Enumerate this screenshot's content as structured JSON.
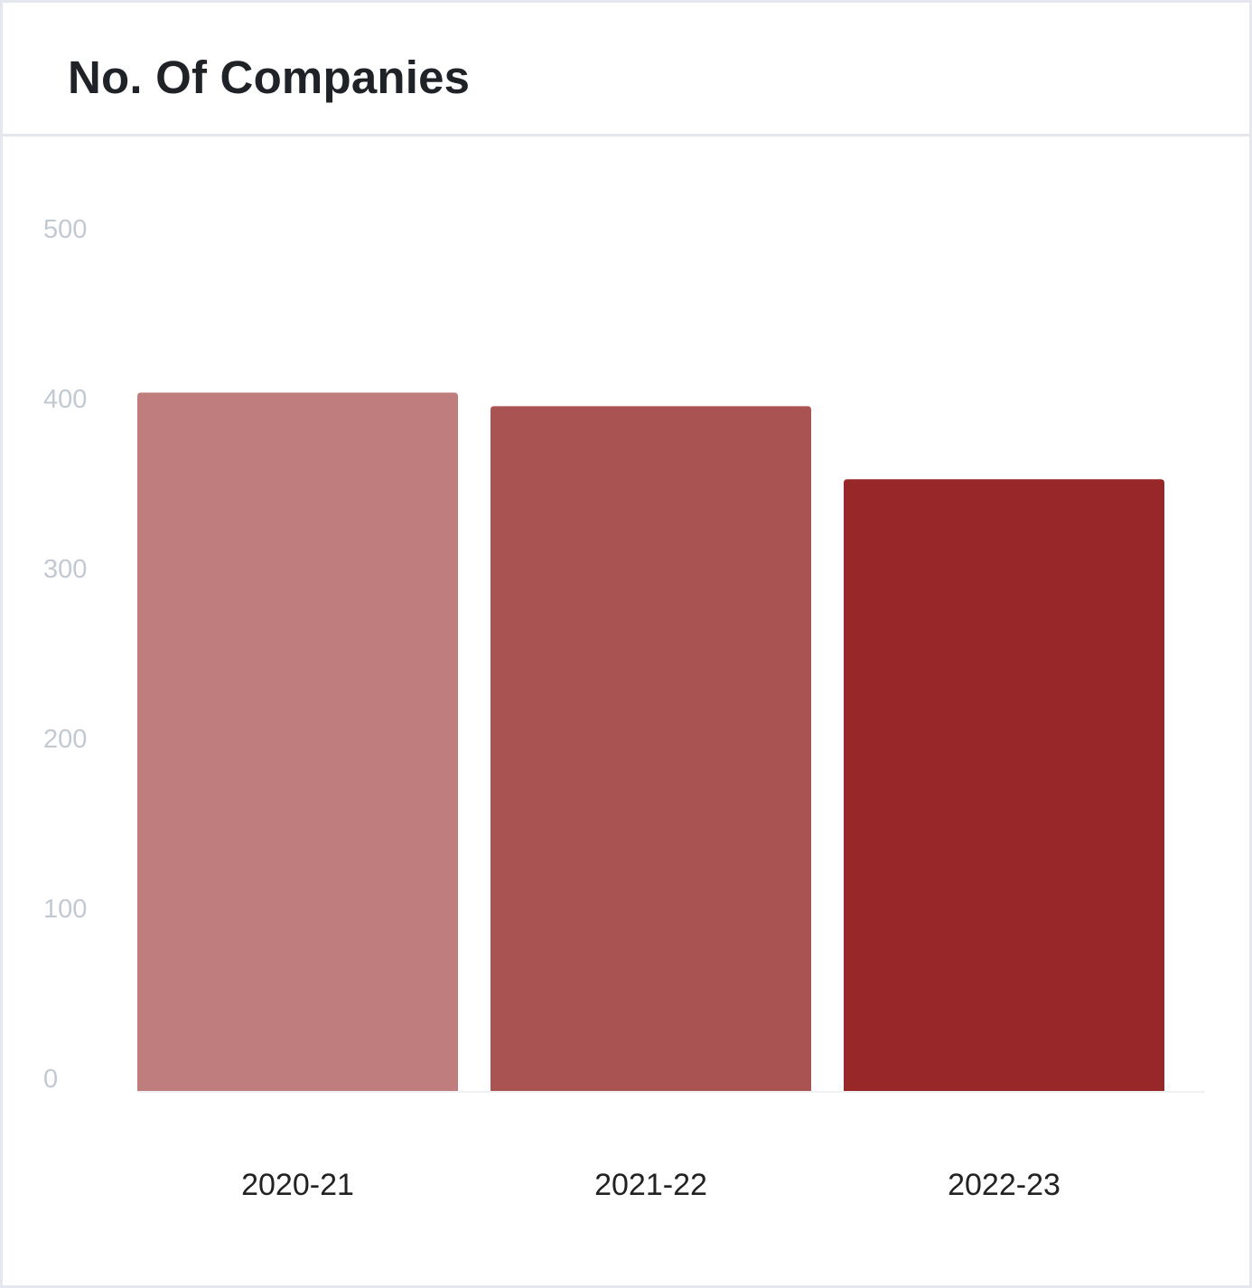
{
  "card": {
    "title": "No. Of Companies"
  },
  "chart_data": {
    "type": "bar",
    "title": "No. Of Companies",
    "categories": [
      "2020-21",
      "2021-22",
      "2022-23"
    ],
    "values": [
      411,
      403,
      360
    ],
    "colors": [
      "#c07d7d",
      "#aa5353",
      "#982729"
    ],
    "xlabel": "",
    "ylabel": "",
    "ylim": [
      0,
      500
    ],
    "yticks": [
      0,
      100,
      200,
      300,
      400,
      500
    ],
    "grid": false,
    "legend": "none"
  }
}
